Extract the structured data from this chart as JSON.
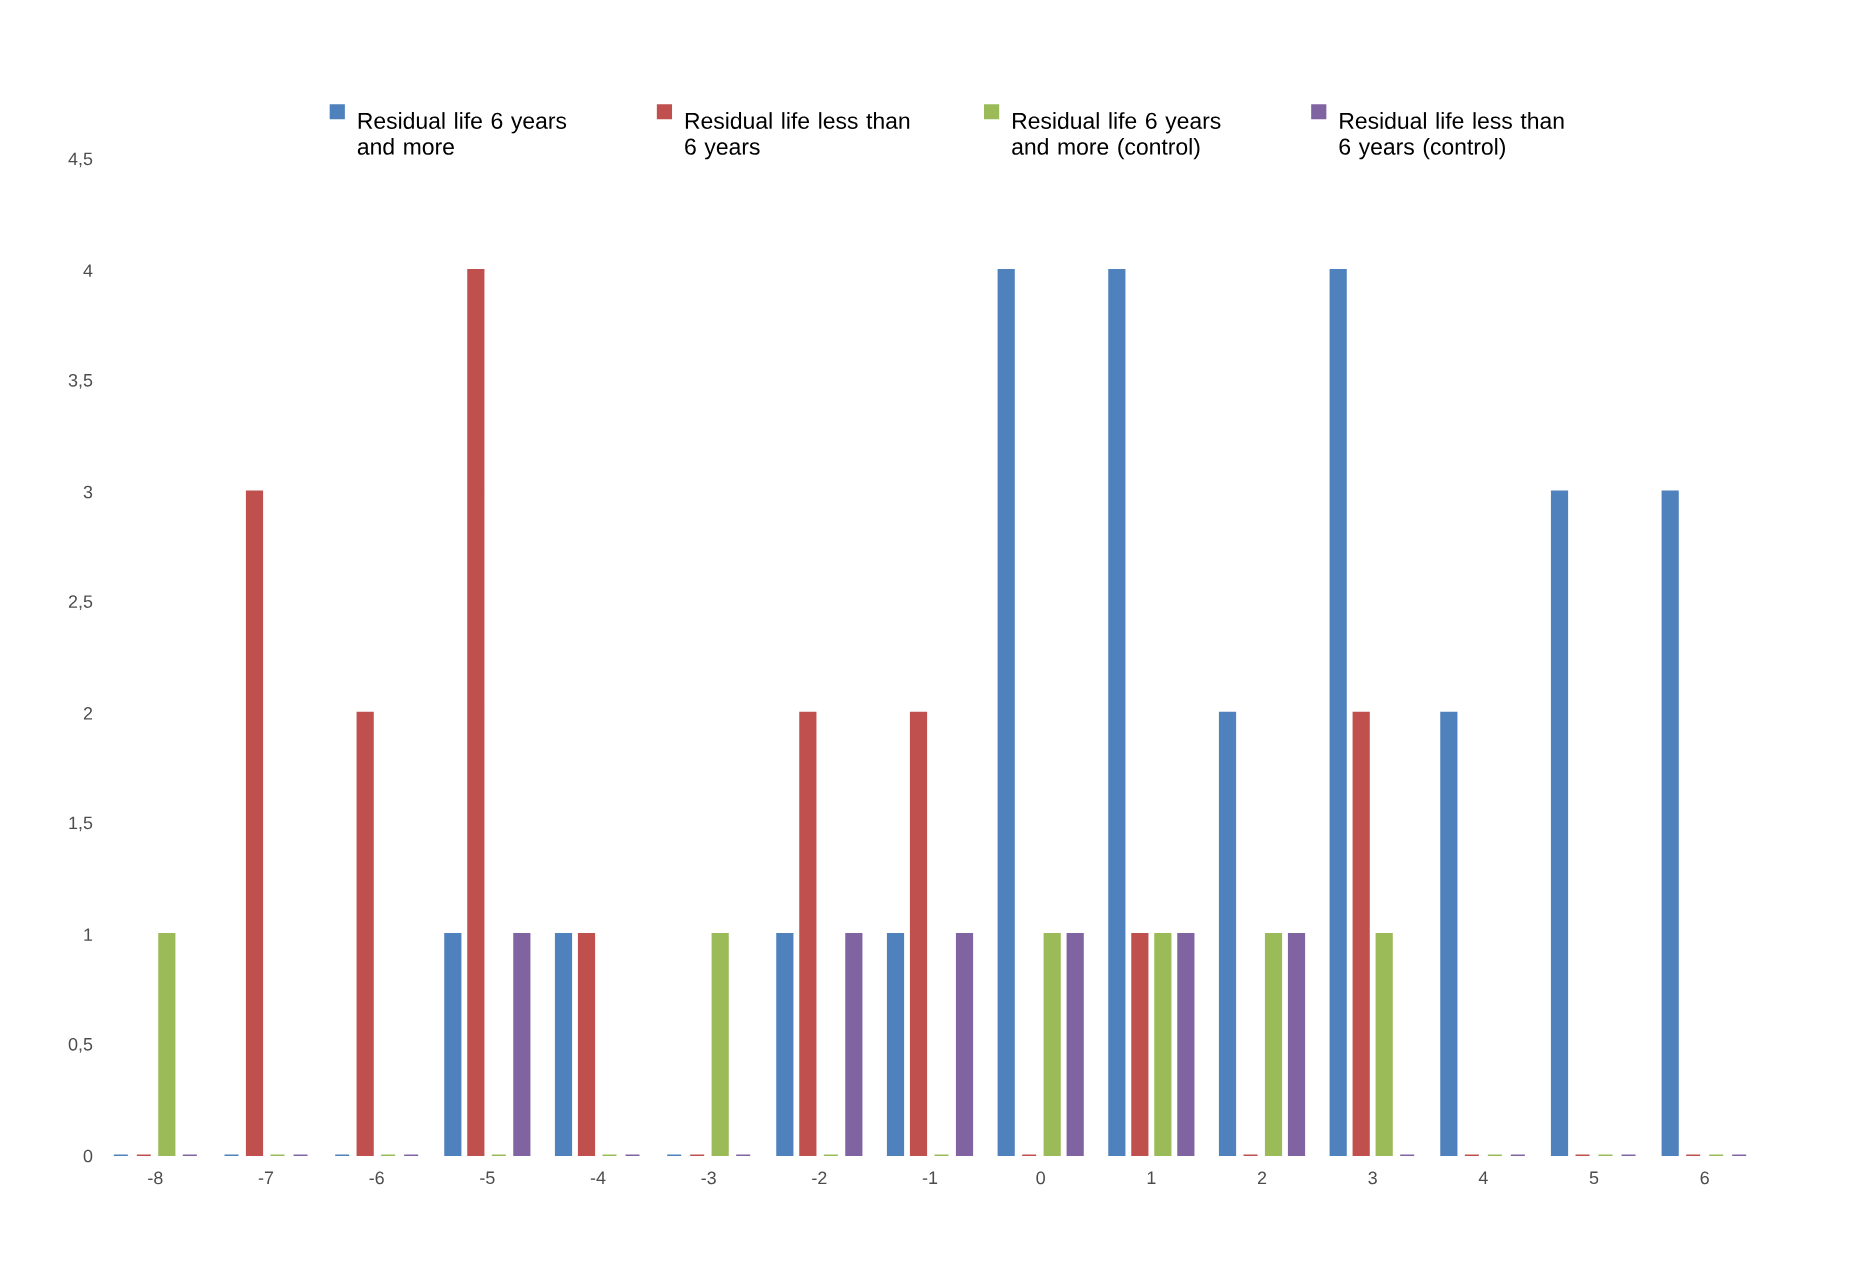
{
  "chart_data": {
    "type": "bar",
    "categories": [
      "-8",
      "-7",
      "-6",
      "-5",
      "-4",
      "-3",
      "-2",
      "-1",
      "0",
      "1",
      "2",
      "3",
      "4",
      "5",
      "6"
    ],
    "series": [
      {
        "name": "Residual life 6 years and more",
        "color": "#4f81bd",
        "values": [
          0,
          0,
          0,
          1,
          1,
          0,
          1,
          1,
          4,
          4,
          2,
          4,
          2,
          3,
          3
        ]
      },
      {
        "name": "Residual life less than 6 years",
        "color": "#c0504d",
        "values": [
          0,
          3,
          2,
          4,
          1,
          0,
          2,
          2,
          0,
          1,
          0,
          2,
          0,
          0,
          0
        ]
      },
      {
        "name": "Residual life 6 years and more (control)",
        "color": "#9bbb59",
        "values": [
          1,
          0,
          0,
          0,
          0,
          1,
          0,
          0,
          1,
          1,
          1,
          1,
          0,
          0,
          0
        ]
      },
      {
        "name": "Residual life less than 6 years (control)",
        "color": "#8064a2",
        "values": [
          0,
          0,
          0,
          1,
          0,
          0,
          1,
          1,
          1,
          1,
          1,
          0,
          0,
          0,
          0
        ]
      }
    ],
    "ylim": [
      0,
      4.5
    ],
    "yticks": [
      0,
      {
        "value": 0.5,
        "label": "0,5"
      },
      1,
      {
        "value": 1.5,
        "label": "1,5"
      },
      2,
      {
        "value": 2.5,
        "label": "2,5"
      },
      3,
      {
        "value": 3.5,
        "label": "3,5"
      },
      4,
      {
        "value": 4.5,
        "label": "4,5"
      }
    ],
    "legend": "top",
    "grid": false
  }
}
